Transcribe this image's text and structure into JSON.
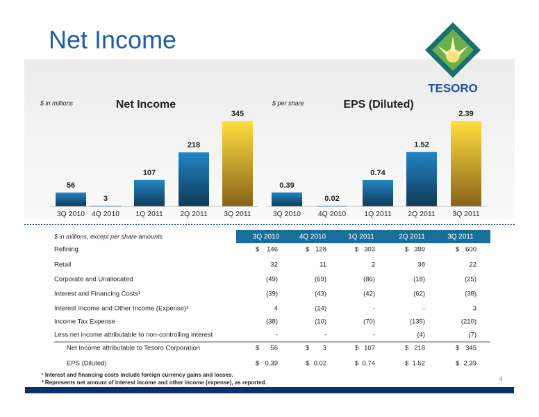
{
  "title": "Net Income",
  "logo_text": "TESORO",
  "chart_data": [
    {
      "type": "bar",
      "title": "Net Income",
      "unit_label": "$ in millions",
      "categories": [
        "3Q 2010",
        "4Q 2010",
        "1Q 2011",
        "2Q 2011",
        "3Q 2011"
      ],
      "values": [
        56,
        3,
        107,
        218,
        345
      ],
      "colors": [
        "#1c6a9c",
        "#1c6a9c",
        "#1c6a9c",
        "#1c6a9c",
        "#f8b331"
      ]
    },
    {
      "type": "bar",
      "title": "EPS (Diluted)",
      "unit_label": "$ per share",
      "categories": [
        "3Q 2010",
        "4Q 2010",
        "1Q 2011",
        "2Q 2011",
        "3Q 2011"
      ],
      "values": [
        0.39,
        0.02,
        0.74,
        1.52,
        2.39
      ],
      "colors": [
        "#1c6a9c",
        "#1c6a9c",
        "#1c6a9c",
        "#1c6a9c",
        "#f8b331"
      ]
    }
  ],
  "table": {
    "caption": "$ in millions, except per share amounts",
    "columns": [
      "3Q 2010",
      "4Q 2010",
      "1Q 2011",
      "2Q 2011",
      "3Q 2011"
    ],
    "rows": [
      {
        "label": "Refining",
        "currency": "$",
        "cells": [
          "146",
          "128",
          "303",
          "399",
          "600"
        ]
      },
      {
        "label": "Retail",
        "cells": [
          "32",
          "11",
          "2",
          "38",
          "22"
        ]
      },
      {
        "label": "Corporate and Unallocated",
        "cells": [
          "(49)",
          "(69)",
          "(86)",
          "(18)",
          "(25)"
        ]
      },
      {
        "label": "Interest and Financing Costs¹",
        "cells": [
          "(39)",
          "(43)",
          "(42)",
          "(62)",
          "(38)"
        ]
      },
      {
        "label": "Interest Income and Other Income (Expense)²",
        "cells": [
          "4",
          "(14)",
          "-",
          "-",
          "3"
        ]
      },
      {
        "label": "Income Tax Expense",
        "cells": [
          "(38)",
          "(10)",
          "(70)",
          "(135)",
          "(210)"
        ]
      },
      {
        "label": "Less net income attributable to non-controlling interest",
        "cells": [
          "-",
          "-",
          "-",
          "(4)",
          "(7)"
        ]
      },
      {
        "label": "Net Income attributable to Tesoro Corporation",
        "currency": "$",
        "cells": [
          "56",
          "3",
          "107",
          "218",
          "345"
        ]
      },
      {
        "label": "EPS (Diluted)",
        "currency": "$",
        "cells": [
          "0.39",
          "0.02",
          "0.74",
          "1.52",
          "2.39"
        ]
      }
    ]
  },
  "footnotes": [
    "¹ Interest and financing costs include foreign currency gains and losses.",
    "² Represents net amount of interest income and other income (expense), as reported."
  ],
  "page_number": "4"
}
